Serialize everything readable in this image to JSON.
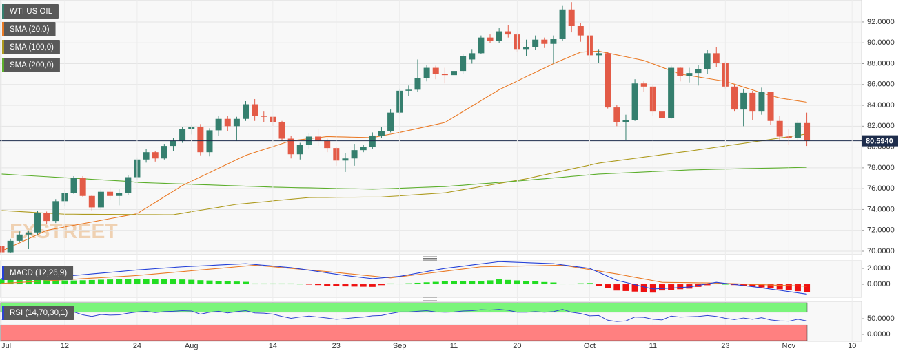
{
  "chart_data": [
    {
      "type": "candlestick",
      "name": "WTI US OIL",
      "up_color": "#357f6e",
      "down_color": "#e35b47",
      "grid": true,
      "categories": [
        "Jul",
        null,
        null,
        null,
        null,
        null,
        null,
        "12",
        null,
        null,
        null,
        null,
        null,
        null,
        null,
        "24",
        null,
        null,
        null,
        null,
        null,
        "Aug",
        null,
        null,
        null,
        null,
        null,
        null,
        null,
        null,
        "14",
        null,
        null,
        null,
        null,
        null,
        null,
        "23",
        null,
        null,
        null,
        null,
        null,
        null,
        "Sep",
        null,
        null,
        null,
        null,
        null,
        "11",
        null,
        null,
        null,
        null,
        null,
        null,
        "20",
        null,
        null,
        null,
        null,
        null,
        null,
        null,
        "Oct",
        null,
        null,
        null,
        null,
        null,
        null,
        "11",
        null,
        null,
        null,
        null,
        null,
        null,
        null,
        "23",
        null,
        null,
        null,
        null,
        null,
        null,
        "Nov",
        null,
        null,
        null,
        null,
        null,
        null,
        "10"
      ],
      "open": [
        70.5,
        69.9,
        71.0,
        71.6,
        71.8,
        73.7,
        72.9,
        74.8,
        75.6,
        77.0,
        75.3,
        74.2,
        75.7,
        75.3,
        75.6,
        77.1,
        78.8,
        79.5,
        78.9,
        80.1,
        80.6,
        81.7,
        81.9,
        79.5,
        81.6,
        82.7,
        82.0,
        82.7,
        84.1,
        83.0,
        82.9,
        82.4,
        80.8,
        79.3,
        80.2,
        81.0,
        80.6,
        79.9,
        78.7,
        78.9,
        79.7,
        80.0,
        81.1,
        81.5,
        83.3,
        85.4,
        85.5,
        86.6,
        87.6,
        87.0,
        86.9,
        87.3,
        88.4,
        89.0,
        90.5,
        90.2,
        91.1,
        90.8,
        89.4,
        89.6,
        90.3,
        89.9,
        90.4,
        93.2,
        91.6,
        90.7,
        88.8,
        89.0,
        83.8,
        82.4,
        82.6,
        86.1,
        85.8,
        83.4,
        82.8,
        87.6,
        86.8,
        87.1,
        87.5,
        89.0,
        88.1,
        85.8,
        83.6,
        85.2,
        83.4,
        85.3,
        82.5,
        81.0,
        80.9,
        82.3,
        null,
        null,
        null,
        null,
        null
      ],
      "high": [
        70.9,
        71.2,
        71.9,
        72.0,
        73.9,
        73.8,
        75.0,
        75.9,
        77.2,
        77.2,
        75.4,
        75.9,
        76.1,
        76.0,
        77.3,
        79.0,
        79.8,
        79.6,
        80.3,
        80.9,
        81.9,
        82.1,
        82.2,
        81.8,
        83.0,
        83.0,
        82.9,
        84.4,
        84.6,
        83.4,
        83.0,
        82.5,
        81.1,
        80.4,
        81.3,
        81.7,
        80.8,
        80.0,
        79.4,
        80.3,
        80.2,
        81.4,
        81.9,
        83.6,
        85.6,
        85.9,
        88.4,
        87.9,
        87.8,
        87.6,
        87.5,
        88.9,
        89.4,
        90.7,
        90.8,
        91.4,
        91.7,
        90.9,
        90.3,
        90.7,
        90.5,
        90.7,
        93.6,
        93.9,
        91.9,
        91.0,
        89.4,
        89.1,
        84.0,
        83.1,
        86.5,
        86.3,
        86.0,
        83.7,
        87.8,
        87.7,
        87.6,
        87.9,
        89.3,
        89.6,
        88.2,
        86.0,
        85.6,
        85.4,
        85.7,
        85.3,
        83.0,
        81.7,
        82.6,
        83.3,
        null,
        null,
        null,
        null,
        null
      ],
      "low": [
        69.7,
        69.8,
        70.9,
        70.2,
        71.6,
        72.6,
        72.7,
        74.3,
        75.5,
        75.2,
        73.9,
        74.0,
        74.9,
        74.4,
        75.4,
        76.8,
        78.5,
        78.6,
        78.8,
        79.6,
        80.4,
        81.2,
        79.2,
        79.1,
        81.1,
        81.5,
        80.6,
        82.5,
        82.5,
        82.4,
        82.0,
        80.6,
        78.9,
        78.8,
        79.8,
        80.1,
        79.5,
        78.2,
        77.6,
        78.2,
        79.5,
        79.8,
        80.9,
        81.4,
        83.2,
        84.9,
        85.3,
        86.3,
        86.5,
        86.1,
        86.3,
        87.0,
        88.0,
        88.9,
        90.0,
        90.0,
        90.5,
        89.1,
        88.7,
        89.3,
        89.5,
        88.0,
        90.2,
        91.0,
        90.1,
        88.3,
        88.1,
        83.7,
        82.0,
        80.7,
        82.5,
        85.3,
        83.0,
        82.2,
        82.7,
        86.3,
        86.2,
        85.9,
        87.0,
        87.7,
        85.6,
        83.4,
        82.0,
        82.6,
        83.1,
        82.1,
        80.6,
        80.2,
        80.7,
        80.1,
        null,
        null,
        null,
        null,
        null
      ],
      "close": [
        69.9,
        71.0,
        71.6,
        71.8,
        73.7,
        72.9,
        74.8,
        75.6,
        77.0,
        75.3,
        74.2,
        75.7,
        75.3,
        75.6,
        77.1,
        78.8,
        79.5,
        78.9,
        80.1,
        80.6,
        81.7,
        81.9,
        79.5,
        81.6,
        82.7,
        82.0,
        82.7,
        84.1,
        83.0,
        82.9,
        82.4,
        80.8,
        79.3,
        80.2,
        81.0,
        80.6,
        79.9,
        78.7,
        78.9,
        79.7,
        80.0,
        81.1,
        81.5,
        83.3,
        85.4,
        85.5,
        86.6,
        87.6,
        87.0,
        86.9,
        87.3,
        88.7,
        89.0,
        90.5,
        90.2,
        91.1,
        90.8,
        89.4,
        89.6,
        90.3,
        89.9,
        90.4,
        93.2,
        91.6,
        90.7,
        88.8,
        89.0,
        83.8,
        82.4,
        82.6,
        86.1,
        85.8,
        83.4,
        82.8,
        87.6,
        86.8,
        87.1,
        87.5,
        89.0,
        88.1,
        85.8,
        83.6,
        85.2,
        83.4,
        85.3,
        82.5,
        81.0,
        80.9,
        82.3,
        80.594,
        null,
        null,
        null,
        null,
        null
      ],
      "series": [
        {
          "name": "SMA (20,0)",
          "color": "#ea7a26",
          "values": [
            70.0,
            70.4,
            70.8,
            71.2,
            71.6,
            72.0,
            72.16,
            72.32,
            72.48,
            72.64,
            72.8,
            72.96,
            73.12,
            73.28,
            73.44,
            73.6,
            74.14,
            74.68,
            75.22,
            75.76,
            76.3,
            76.71,
            77.13,
            77.54,
            77.96,
            78.37,
            78.79,
            79.2,
            79.48,
            79.76,
            80.04,
            80.32,
            80.6,
            80.7,
            80.8,
            80.9,
            81.0,
            80.98,
            80.96,
            80.94,
            80.92,
            80.9,
            81.07,
            81.23,
            81.4,
            81.59,
            81.78,
            81.97,
            82.16,
            82.35,
            82.88,
            83.4,
            83.93,
            84.45,
            84.98,
            85.5,
            85.92,
            86.33,
            86.75,
            87.17,
            87.58,
            88.0,
            88.37,
            88.73,
            89.1,
            89.15,
            89.2,
            89.02,
            88.84,
            88.66,
            88.48,
            88.3,
            87.98,
            87.65,
            87.33,
            87.0,
            86.86,
            86.72,
            86.58,
            86.44,
            86.3,
            86.03,
            85.75,
            85.48,
            85.2,
            84.95,
            84.7,
            84.57,
            84.43,
            84.3,
            null,
            null,
            null,
            null,
            null
          ]
        },
        {
          "name": "SMA (100,0)",
          "color": "#ad9a1e",
          "values": [
            73.9,
            73.85,
            73.8,
            73.75,
            73.7,
            73.65,
            73.6,
            73.55,
            73.55,
            73.54,
            73.54,
            73.53,
            73.53,
            73.52,
            73.52,
            73.51,
            73.51,
            73.51,
            73.5,
            73.5,
            73.64,
            73.79,
            73.93,
            74.07,
            74.21,
            74.36,
            74.5,
            74.58,
            74.66,
            74.74,
            74.83,
            74.91,
            74.99,
            75.07,
            75.15,
            75.16,
            75.16,
            75.17,
            75.18,
            75.18,
            75.19,
            75.19,
            75.2,
            75.26,
            75.31,
            75.37,
            75.43,
            75.49,
            75.54,
            75.6,
            75.75,
            75.9,
            76.05,
            76.2,
            76.35,
            76.5,
            76.65,
            76.8,
            76.95,
            77.14,
            77.33,
            77.51,
            77.7,
            77.89,
            78.08,
            78.26,
            78.45,
            78.57,
            78.68,
            78.8,
            78.91,
            79.03,
            79.14,
            79.26,
            79.37,
            79.49,
            79.6,
            79.73,
            79.85,
            79.98,
            80.1,
            80.23,
            80.35,
            80.48,
            80.6,
            80.73,
            80.86,
            80.99,
            81.12,
            81.25,
            null,
            null,
            null,
            null,
            null
          ]
        },
        {
          "name": "SMA (200,0)",
          "color": "#5cae2c",
          "values": [
            77.4,
            77.35,
            77.3,
            77.25,
            77.2,
            77.15,
            77.1,
            77.05,
            77.0,
            76.95,
            76.9,
            76.85,
            76.8,
            76.75,
            76.7,
            76.6,
            76.57,
            76.54,
            76.51,
            76.48,
            76.45,
            76.42,
            76.39,
            76.36,
            76.33,
            76.3,
            76.27,
            76.24,
            76.21,
            76.18,
            76.15,
            76.13,
            76.11,
            76.09,
            76.08,
            76.06,
            76.04,
            76.02,
            76.0,
            75.99,
            75.97,
            75.95,
            75.98,
            76.01,
            76.04,
            76.07,
            76.11,
            76.14,
            76.17,
            76.2,
            76.27,
            76.33,
            76.4,
            76.47,
            76.53,
            76.6,
            76.67,
            76.73,
            76.8,
            76.88,
            76.95,
            77.03,
            77.1,
            77.18,
            77.25,
            77.33,
            77.4,
            77.44,
            77.48,
            77.52,
            77.56,
            77.6,
            77.64,
            77.68,
            77.72,
            77.76,
            77.8,
            77.82,
            77.84,
            77.86,
            77.88,
            77.9,
            77.92,
            77.94,
            77.96,
            77.97,
            77.99,
            78.01,
            78.03,
            78.05,
            null,
            null,
            null,
            null,
            null
          ]
        }
      ],
      "ylim": [
        69.67,
        94.11
      ],
      "yticks": [
        {
          "value": 70,
          "label": "70.0000"
        },
        {
          "value": 72,
          "label": "72.0000"
        },
        {
          "value": 74,
          "label": "74.0000"
        },
        {
          "value": 76,
          "label": "76.0000"
        },
        {
          "value": 78,
          "label": "78.0000"
        },
        {
          "value": 80,
          "label": "80.0000"
        },
        {
          "value": 82,
          "label": "82.0000"
        },
        {
          "value": 84,
          "label": "84.0000"
        },
        {
          "value": 86,
          "label": "86.0000"
        },
        {
          "value": 88,
          "label": "88.0000"
        },
        {
          "value": 90,
          "label": "90.0000"
        },
        {
          "value": 92,
          "label": "92.0000"
        }
      ],
      "price_line": {
        "value": 80.594,
        "label": "80.5940",
        "color": "#1e2d4c"
      },
      "watermark": "FXSTREET"
    },
    {
      "type": "macd",
      "title": "MACD (12,26,9)",
      "macd_color": "#2440d8",
      "signal_color": "#ea7a26",
      "up_color": "#22dd22",
      "down_color": "#ee1111",
      "macd": [
        0.7,
        0.75,
        0.8,
        0.85,
        0.9,
        0.95,
        1.0,
        1.05,
        1.1,
        1.2,
        1.3,
        1.4,
        1.5,
        1.6,
        1.7,
        1.8,
        1.88,
        1.96,
        2.04,
        2.12,
        2.2,
        2.26,
        2.31,
        2.37,
        2.43,
        2.49,
        2.54,
        2.6,
        2.5,
        2.4,
        2.3,
        2.2,
        2.1,
        1.93,
        1.77,
        1.6,
        1.43,
        1.27,
        1.1,
        0.97,
        0.83,
        0.7,
        0.8,
        0.9,
        1.0,
        1.2,
        1.4,
        1.6,
        1.8,
        2.0,
        2.14,
        2.28,
        2.43,
        2.57,
        2.71,
        2.85,
        2.81,
        2.77,
        2.73,
        2.68,
        2.64,
        2.6,
        2.45,
        2.3,
        2.15,
        2.0,
        1.5,
        1.0,
        0.5,
        0.23,
        -0.05,
        -0.33,
        -0.6,
        -0.54,
        -0.48,
        -0.41,
        -0.35,
        -0.15,
        0.05,
        0.25,
        0.11,
        -0.03,
        -0.17,
        -0.31,
        -0.45,
        -0.61,
        -0.77,
        -0.93,
        -1.09,
        -1.25,
        null,
        null,
        null,
        null,
        null
      ],
      "signal": [
        0.1,
        0.17,
        0.23,
        0.3,
        0.37,
        0.43,
        0.5,
        0.57,
        0.63,
        0.7,
        0.77,
        0.83,
        0.9,
        0.97,
        1.03,
        1.1,
        1.2,
        1.3,
        1.4,
        1.5,
        1.6,
        1.7,
        1.8,
        1.9,
        2.0,
        2.1,
        2.2,
        2.3,
        2.4,
        2.3,
        2.2,
        2.1,
        2.0,
        1.9,
        1.8,
        1.7,
        1.6,
        1.49,
        1.37,
        1.26,
        1.14,
        1.03,
        0.91,
        0.8,
        0.94,
        1.08,
        1.22,
        1.36,
        1.5,
        1.64,
        1.78,
        1.92,
        2.06,
        2.2,
        2.22,
        2.24,
        2.27,
        2.29,
        2.31,
        2.33,
        2.36,
        2.38,
        2.4,
        2.22,
        2.03,
        1.85,
        1.67,
        1.48,
        1.3,
        1.09,
        0.88,
        0.67,
        0.46,
        0.25,
        0.23,
        0.22,
        0.2,
        0.18,
        0.17,
        0.15,
        0.11,
        0.07,
        0.03,
        -0.01,
        -0.05,
        -0.09,
        -0.13,
        -0.17,
        -0.21,
        -0.25,
        null,
        null,
        null,
        null,
        null
      ],
      "histogram": [
        0.6,
        0.58,
        0.57,
        0.55,
        0.53,
        0.52,
        0.5,
        0.48,
        0.47,
        0.5,
        0.53,
        0.57,
        0.6,
        0.63,
        0.67,
        0.7,
        0.68,
        0.66,
        0.64,
        0.62,
        0.6,
        0.56,
        0.51,
        0.47,
        0.43,
        0.39,
        0.34,
        0.3,
        0.1,
        0.1,
        0.1,
        0.1,
        0.1,
        0.03,
        -0.03,
        -0.1,
        -0.17,
        -0.22,
        -0.27,
        -0.29,
        -0.31,
        -0.33,
        -0.11,
        0.1,
        0.06,
        0.12,
        0.18,
        0.24,
        0.3,
        0.36,
        0.36,
        0.36,
        0.37,
        0.37,
        0.49,
        0.61,
        0.54,
        0.48,
        0.42,
        0.35,
        0.28,
        0.22,
        0.05,
        0.08,
        0.12,
        0.15,
        -0.17,
        -0.48,
        -0.8,
        -0.86,
        -0.93,
        -1.0,
        -1.06,
        -0.79,
        -0.71,
        -0.63,
        -0.55,
        -0.33,
        -0.12,
        0.1,
        0.0,
        -0.1,
        -0.2,
        -0.3,
        -0.4,
        -0.52,
        -0.64,
        -0.76,
        -0.88,
        -1.0,
        null,
        null,
        null,
        null,
        null
      ],
      "ylim": [
        -1.65,
        2.96
      ],
      "yticks": [
        {
          "value": 0,
          "label": "0.0000"
        },
        {
          "value": 2,
          "label": "2.0000"
        }
      ]
    },
    {
      "type": "rsi",
      "title": "RSI (14,70,30,1)",
      "color": "#2f44d0",
      "overbought": 70,
      "oversold": 30,
      "overbought_color": "#7bf57b",
      "oversold_color": "#ff8080",
      "values": [
        48,
        55,
        58,
        59,
        65,
        60,
        66,
        68,
        71,
        62,
        57,
        63,
        61,
        62,
        67,
        71,
        73,
        69,
        72,
        73,
        75,
        74,
        64,
        70,
        73,
        68,
        72,
        75,
        68,
        67,
        64,
        57,
        51,
        55,
        58,
        55,
        52,
        48,
        50,
        53,
        55,
        59,
        60,
        66,
        71,
        71,
        73,
        75,
        71,
        70,
        71,
        74,
        75,
        78,
        77,
        79,
        76,
        70,
        70,
        72,
        70,
        72,
        79,
        70,
        66,
        59,
        60,
        45,
        41,
        43,
        55,
        54,
        48,
        46,
        58,
        55,
        56,
        57,
        60,
        57,
        51,
        47,
        52,
        48,
        53,
        46,
        43,
        42,
        48,
        43,
        null,
        null,
        null,
        null,
        null
      ],
      "ylim": [
        -21.7,
        104.3
      ],
      "yticks": [
        {
          "value": 0,
          "label": "0.0000"
        },
        {
          "value": 50,
          "label": "50.0000"
        }
      ]
    }
  ]
}
